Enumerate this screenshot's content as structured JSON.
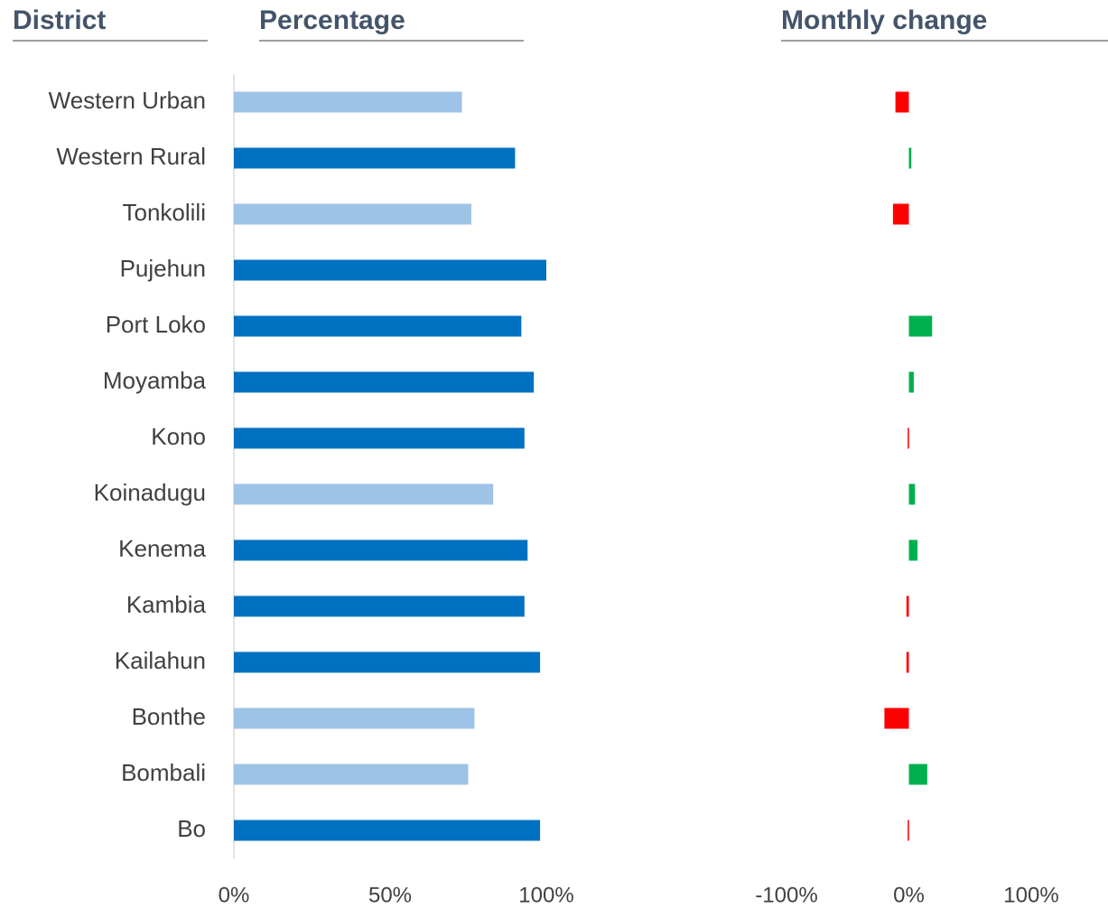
{
  "chart_data": [
    {
      "type": "bar",
      "orientation": "horizontal",
      "category_title": "District",
      "title": "Percentage",
      "categories": [
        "Western Urban",
        "Western Rural",
        "Tonkolili",
        "Pujehun",
        "Port Loko",
        "Moyamba",
        "Kono",
        "Koinadugu",
        "Kenema",
        "Kambia",
        "Kailahun",
        "Bonthe",
        "Bombali",
        "Bo"
      ],
      "values": [
        73,
        90,
        76,
        100,
        92,
        96,
        93,
        83,
        94,
        93,
        98,
        77,
        75,
        98
      ],
      "colors": [
        "#9dc3e6",
        "#0070c0",
        "#9dc3e6",
        "#0070c0",
        "#0070c0",
        "#0070c0",
        "#0070c0",
        "#9dc3e6",
        "#0070c0",
        "#0070c0",
        "#0070c0",
        "#9dc3e6",
        "#9dc3e6",
        "#0070c0"
      ],
      "xlim": [
        0,
        100
      ],
      "xticks": [
        {
          "value": 0,
          "label": "0%"
        },
        {
          "value": 50,
          "label": "50%"
        },
        {
          "value": 100,
          "label": "100%"
        }
      ]
    },
    {
      "type": "diverging-bar",
      "title": "Monthly change",
      "values": [
        -11,
        2,
        -13,
        null,
        19,
        4,
        -1,
        5,
        7,
        -2,
        -2,
        -20,
        15,
        -1
      ],
      "positive_color": "#00b050",
      "negative_color": "#ff0000",
      "xlim": [
        -100,
        100
      ],
      "xticks": [
        {
          "value": -100,
          "label": "-100%"
        },
        {
          "value": 0,
          "label": "0%"
        },
        {
          "value": 100,
          "label": "100%"
        }
      ]
    }
  ]
}
